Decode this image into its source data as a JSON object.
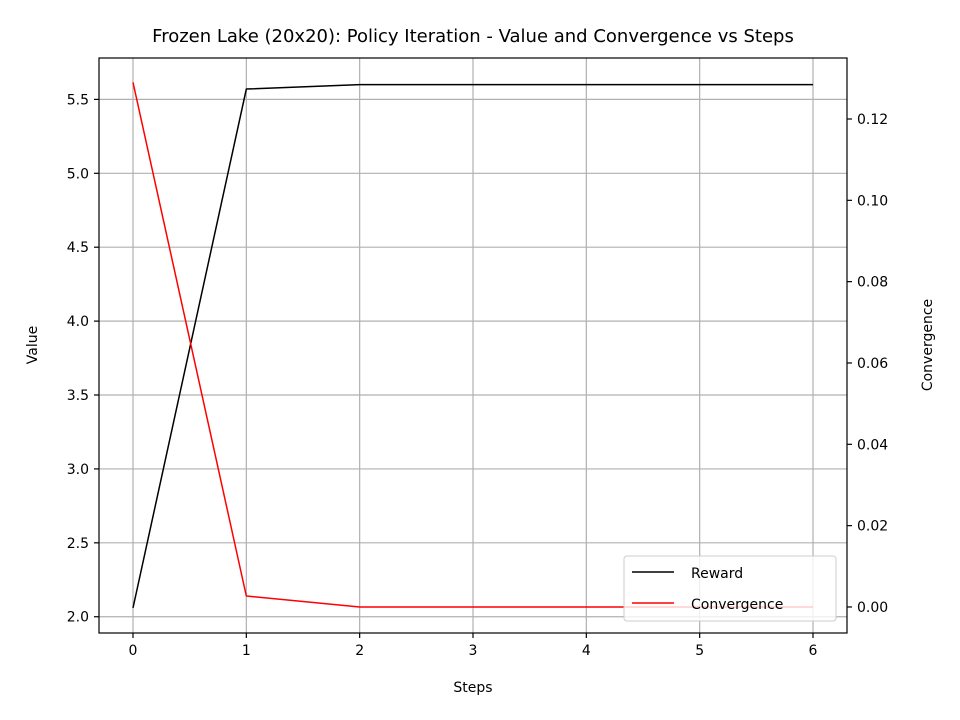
{
  "chart_data": {
    "type": "line",
    "title": "Frozen Lake (20x20): Policy Iteration - Value and Convergence vs Steps",
    "xlabel": "Steps",
    "ylabel": "Value",
    "y2label": "Convergence",
    "x": [
      0,
      1,
      2,
      3,
      4,
      5,
      6
    ],
    "xticks": [
      "0",
      "1",
      "2",
      "3",
      "4",
      "5",
      "6"
    ],
    "xlim": [
      -0.3,
      6.3
    ],
    "ylim": [
      1.89,
      5.78
    ],
    "yticks": [
      "2.0",
      "2.5",
      "3.0",
      "3.5",
      "4.0",
      "4.5",
      "5.0",
      "5.5"
    ],
    "y2lim": [
      -0.0064,
      0.135
    ],
    "y2ticks": [
      "0.00",
      "0.02",
      "0.04",
      "0.06",
      "0.08",
      "0.10",
      "0.12"
    ],
    "grid": true,
    "legend_position": "lower-right",
    "series": [
      {
        "name": "Reward",
        "axis": "left",
        "color": "#000000",
        "values": [
          2.06,
          5.57,
          5.6,
          5.6,
          5.6,
          5.6,
          5.6
        ]
      },
      {
        "name": "Convergence",
        "axis": "right",
        "color": "#ff0000",
        "values": [
          0.129,
          0.0027,
          0.0,
          0.0,
          0.0,
          0.0,
          0.0
        ]
      }
    ]
  }
}
